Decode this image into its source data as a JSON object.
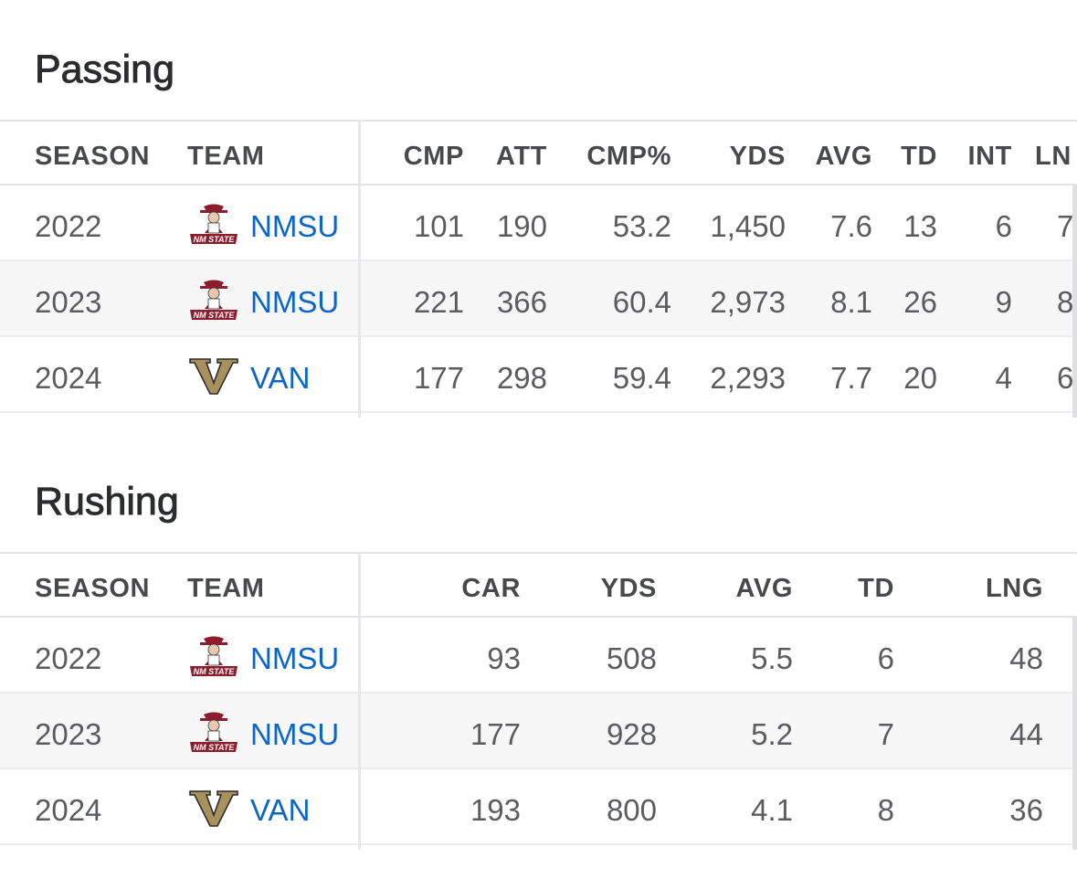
{
  "passing": {
    "title": "Passing",
    "headers": {
      "season": "SEASON",
      "team": "TEAM",
      "cmp": "CMP",
      "att": "ATT",
      "cmp_pct": "CMP%",
      "yds": "YDS",
      "avg": "AVG",
      "td": "TD",
      "int": "INT",
      "lng": "LN"
    },
    "rows": [
      {
        "season": "2022",
        "team": "NMSU",
        "logo": "nmsu-logo-icon",
        "cmp": "101",
        "att": "190",
        "cmp_pct": "53.2",
        "yds": "1,450",
        "avg": "7.6",
        "td": "13",
        "int": "6",
        "lng": "7"
      },
      {
        "season": "2023",
        "team": "NMSU",
        "logo": "nmsu-logo-icon",
        "cmp": "221",
        "att": "366",
        "cmp_pct": "60.4",
        "yds": "2,973",
        "avg": "8.1",
        "td": "26",
        "int": "9",
        "lng": "8"
      },
      {
        "season": "2024",
        "team": "VAN",
        "logo": "vanderbilt-logo-icon",
        "cmp": "177",
        "att": "298",
        "cmp_pct": "59.4",
        "yds": "2,293",
        "avg": "7.7",
        "td": "20",
        "int": "4",
        "lng": "6"
      }
    ]
  },
  "rushing": {
    "title": "Rushing",
    "headers": {
      "season": "SEASON",
      "team": "TEAM",
      "car": "CAR",
      "yds": "YDS",
      "avg": "AVG",
      "td": "TD",
      "lng": "LNG"
    },
    "rows": [
      {
        "season": "2022",
        "team": "NMSU",
        "logo": "nmsu-logo-icon",
        "car": "93",
        "yds": "508",
        "avg": "5.5",
        "td": "6",
        "lng": "48"
      },
      {
        "season": "2023",
        "team": "NMSU",
        "logo": "nmsu-logo-icon",
        "car": "177",
        "yds": "928",
        "avg": "5.2",
        "td": "7",
        "lng": "44"
      },
      {
        "season": "2024",
        "team": "VAN",
        "logo": "vanderbilt-logo-icon",
        "car": "193",
        "yds": "800",
        "avg": "4.1",
        "td": "8",
        "lng": "36"
      }
    ]
  },
  "colors": {
    "link": "#0c65c9",
    "heading": "#2b2c2d",
    "stripe": "#f7f7f8",
    "nmsu_crimson": "#8c1d2c",
    "vanderbilt_gold": "#a8915d"
  }
}
